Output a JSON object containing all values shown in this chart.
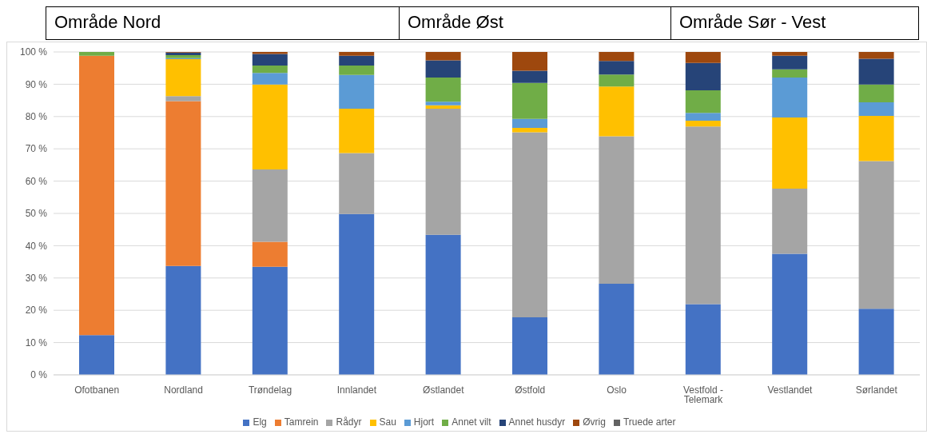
{
  "chart_data": {
    "type": "bar",
    "stacked": true,
    "annotations": [
      "Område Nord",
      "Område Øst",
      "Område Sør - Vest"
    ],
    "categories": [
      "Ofotbanen",
      "Nordland",
      "Trøndelag",
      "Innlandet",
      "Østlandet",
      "Østfold",
      "Oslo",
      "Vestfold - Telemark",
      "Vestlandet",
      "Sørlandet"
    ],
    "series": [
      {
        "name": "Elg",
        "color": "#4472c4",
        "values": [
          12.3,
          33.7,
          33.5,
          49.8,
          43.4,
          17.8,
          28.2,
          21.9,
          37.5,
          20.5
        ]
      },
      {
        "name": "Tamrein",
        "color": "#ed7d31",
        "values": [
          86.5,
          51.1,
          7.7,
          0,
          0,
          0,
          0,
          0,
          0,
          0
        ]
      },
      {
        "name": "Rådyr",
        "color": "#a5a5a5",
        "values": [
          0,
          1.5,
          22.4,
          18.9,
          39.0,
          57.3,
          45.7,
          55.0,
          20.2,
          45.7
        ]
      },
      {
        "name": "Sau",
        "color": "#ffc000",
        "values": [
          0,
          11.5,
          26.3,
          13.7,
          1.1,
          1.4,
          15.4,
          1.8,
          22.0,
          14.0
        ]
      },
      {
        "name": "Hjort",
        "color": "#5b9bd5",
        "values": [
          0,
          0.3,
          3.6,
          10.5,
          1.1,
          2.8,
          0,
          2.4,
          12.4,
          4.2
        ]
      },
      {
        "name": "Annet vilt",
        "color": "#70ad47",
        "values": [
          1.2,
          0.9,
          2.3,
          2.9,
          7.5,
          11.1,
          3.7,
          7.0,
          2.5,
          5.5
        ]
      },
      {
        "name": "Annet husdyr",
        "color": "#264478",
        "values": [
          0,
          0.8,
          3.6,
          3.0,
          5.3,
          3.8,
          4.2,
          8.5,
          4.2,
          8.0
        ]
      },
      {
        "name": "Øvrig",
        "color": "#9e480e",
        "values": [
          0,
          0.2,
          0.6,
          1.2,
          2.6,
          5.8,
          2.8,
          3.4,
          1.2,
          2.1
        ]
      },
      {
        "name": "Truede arter",
        "color": "#636363",
        "values": [
          0,
          0,
          0,
          0,
          0,
          0,
          0,
          0,
          0,
          0
        ]
      }
    ],
    "ylim": [
      0,
      100
    ],
    "yticks": [
      {
        "value": 0,
        "label": "0 %"
      },
      {
        "value": 10,
        "label": "10 %"
      },
      {
        "value": 20,
        "label": "20 %"
      },
      {
        "value": 30,
        "label": "30 %"
      },
      {
        "value": 40,
        "label": "40 %"
      },
      {
        "value": 50,
        "label": "50 %"
      },
      {
        "value": 60,
        "label": "60 %"
      },
      {
        "value": 70,
        "label": "70 %"
      },
      {
        "value": 80,
        "label": "80 %"
      },
      {
        "value": 90,
        "label": "90 %"
      },
      {
        "value": 100,
        "label": "100 %"
      }
    ],
    "grid": "y",
    "legend": "bottom"
  }
}
